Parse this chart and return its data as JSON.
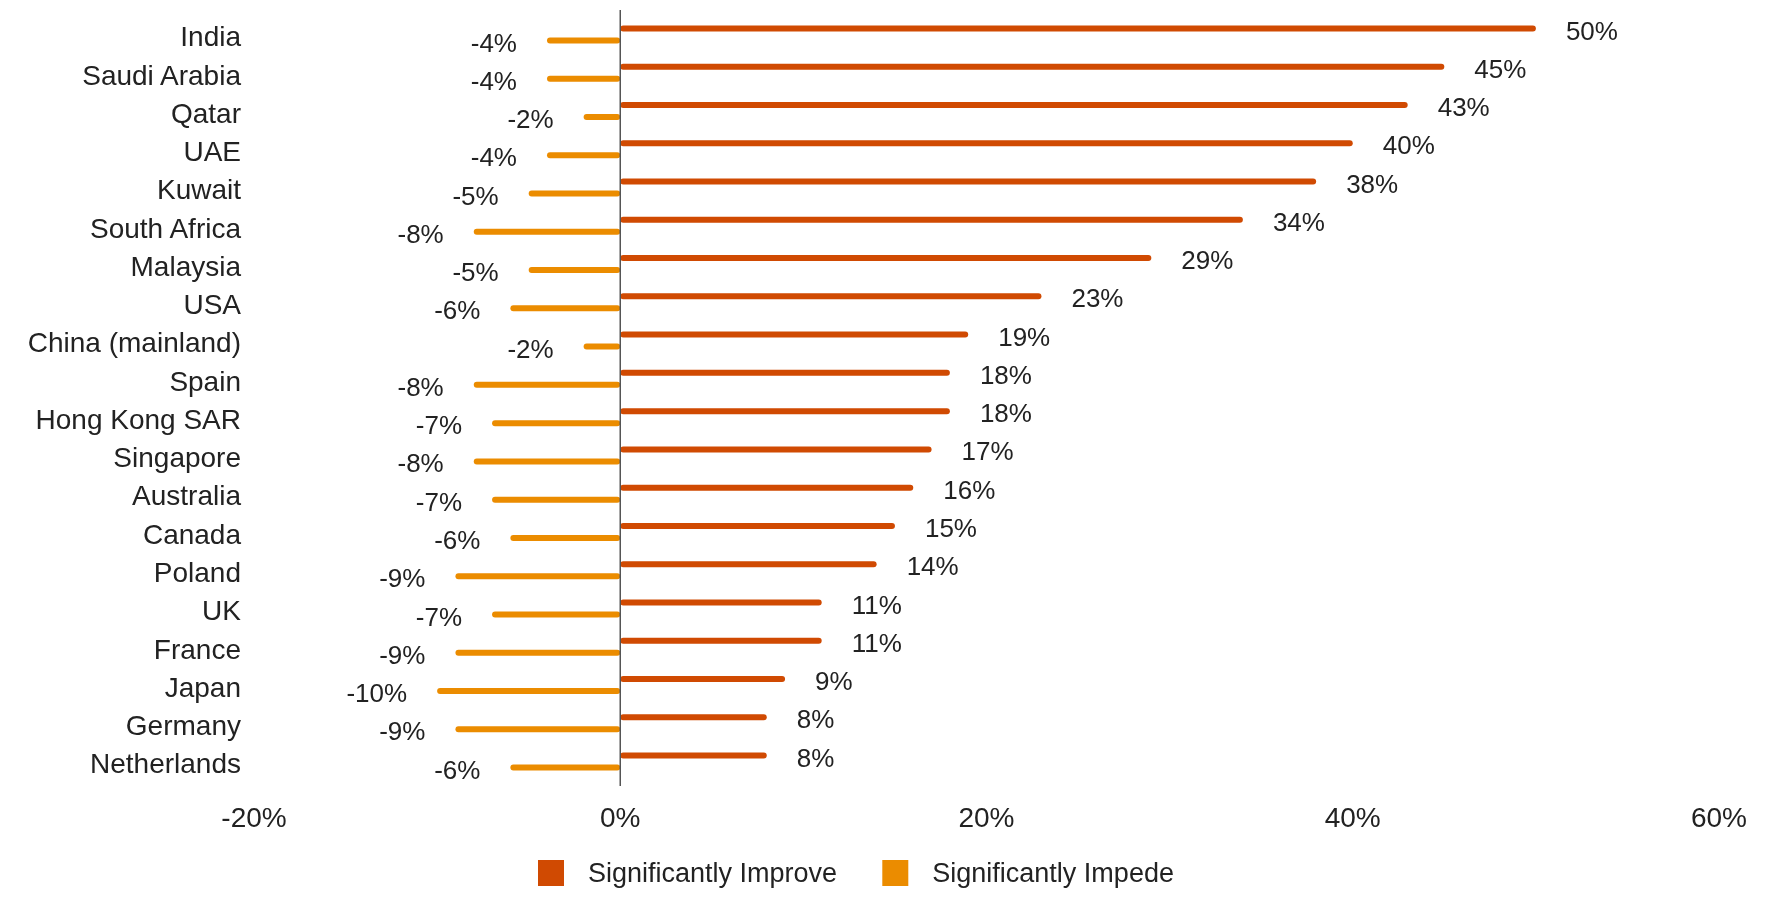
{
  "chart_data": {
    "type": "bar",
    "orientation": "horizontal",
    "categories": [
      "India",
      "Saudi Arabia",
      "Qatar",
      "UAE",
      "Kuwait",
      "South Africa",
      "Malaysia",
      "USA",
      "China (mainland)",
      "Spain",
      "Hong Kong SAR",
      "Singapore",
      "Australia",
      "Canada",
      "Poland",
      "UK",
      "France",
      "Japan",
      "Germany",
      "Netherlands"
    ],
    "series": [
      {
        "name": "Significantly Improve",
        "color": "#d04a02",
        "values": [
          50,
          45,
          43,
          40,
          38,
          34,
          29,
          23,
          19,
          18,
          18,
          17,
          16,
          15,
          14,
          11,
          11,
          9,
          8,
          8
        ],
        "value_labels": [
          "50%",
          "45%",
          "43%",
          "40%",
          "38%",
          "34%",
          "29%",
          "23%",
          "19%",
          "18%",
          "18%",
          "17%",
          "16%",
          "15%",
          "14%",
          "11%",
          "11%",
          "9%",
          "8%",
          "8%"
        ]
      },
      {
        "name": "Significantly Impede",
        "color": "#eb8c00",
        "values": [
          -4,
          -4,
          -2,
          -4,
          -5,
          -8,
          -5,
          -6,
          -2,
          -8,
          -7,
          -8,
          -7,
          -6,
          -9,
          -7,
          -9,
          -10,
          -9,
          -6
        ],
        "value_labels": [
          "-4%",
          "-4%",
          "-2%",
          "-4%",
          "-5%",
          "-8%",
          "-5%",
          "-6%",
          "-2%",
          "-8%",
          "-7%",
          "-8%",
          "-7%",
          "-6%",
          "-9%",
          "-7%",
          "-9%",
          "-10%",
          "-9%",
          "-6%"
        ]
      }
    ],
    "xlim": [
      -20,
      60
    ],
    "xticks": [
      {
        "value": -20,
        "label": "-20%"
      },
      {
        "value": 0,
        "label": "0%"
      },
      {
        "value": 20,
        "label": "20%"
      },
      {
        "value": 40,
        "label": "40%"
      },
      {
        "value": 60,
        "label": "60%"
      }
    ],
    "legend": "bottom"
  }
}
